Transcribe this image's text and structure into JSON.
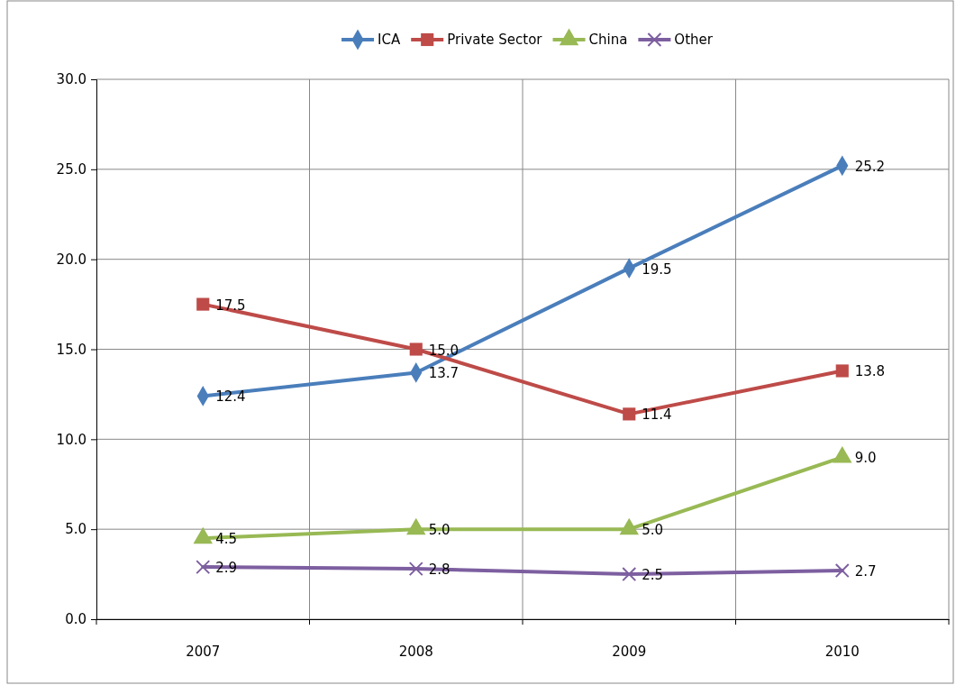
{
  "chart_data": {
    "type": "line",
    "categories": [
      "2007",
      "2008",
      "2009",
      "2010"
    ],
    "series": [
      {
        "name": "ICA",
        "color": "#4a7ebb",
        "marker": "diamond",
        "values": [
          12.4,
          13.7,
          19.5,
          25.2
        ],
        "value_labels": [
          "12.4",
          "13.7",
          "19.5",
          "25.2"
        ]
      },
      {
        "name": "Private Sector",
        "color": "#be4b48",
        "marker": "square",
        "values": [
          17.5,
          15.0,
          11.4,
          13.8
        ],
        "value_labels": [
          "17.5",
          "15.0",
          "11.4",
          "13.8"
        ]
      },
      {
        "name": "China",
        "color": "#98b954",
        "marker": "triangle",
        "values": [
          4.5,
          5.0,
          5.0,
          9.0
        ],
        "value_labels": [
          "4.5",
          "5.0",
          "5.0",
          "9.0"
        ]
      },
      {
        "name": "Other",
        "color": "#7d5fa0",
        "marker": "cross",
        "values": [
          2.9,
          2.8,
          2.5,
          2.7
        ],
        "value_labels": [
          "2.9",
          "2.8",
          "2.5",
          "2.7"
        ]
      }
    ],
    "ylim": [
      0,
      30
    ],
    "yticks": [
      {
        "value": 0,
        "label": "0.0"
      },
      {
        "value": 5,
        "label": "5.0"
      },
      {
        "value": 10,
        "label": "10.0"
      },
      {
        "value": 15,
        "label": "15.0"
      },
      {
        "value": 20,
        "label": "20.0"
      },
      {
        "value": 25,
        "label": "25.0"
      },
      {
        "value": 30,
        "label": "30.0"
      }
    ],
    "grid": true,
    "legend": "top",
    "line_style": "solid"
  }
}
